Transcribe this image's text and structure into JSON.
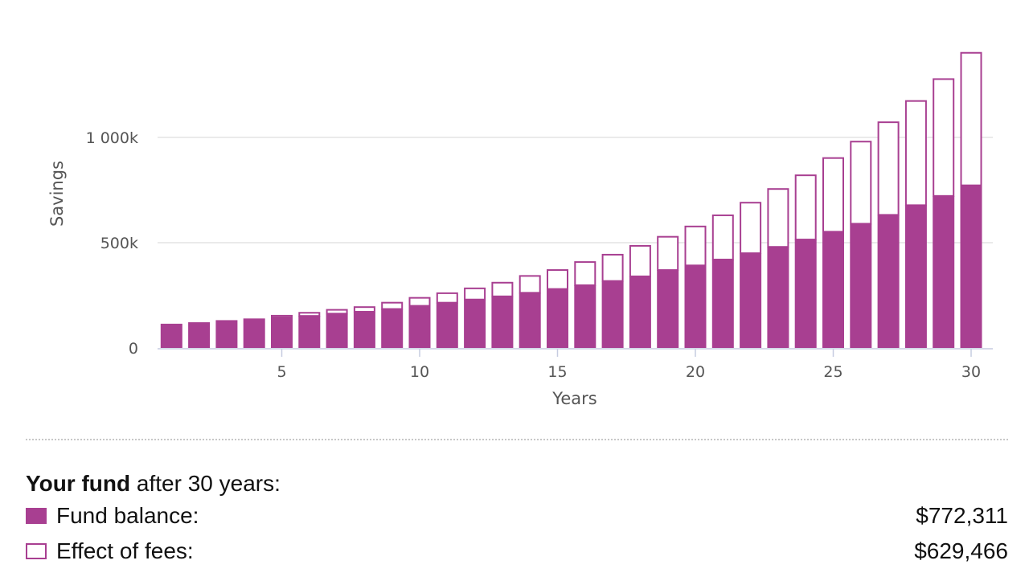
{
  "chart_data": {
    "type": "bar",
    "stacked": true,
    "xlabel": "Years",
    "ylabel": "Savings",
    "x": [
      1,
      2,
      3,
      4,
      5,
      6,
      7,
      8,
      9,
      10,
      11,
      12,
      13,
      14,
      15,
      16,
      17,
      18,
      19,
      20,
      21,
      22,
      23,
      24,
      25,
      26,
      27,
      28,
      29,
      30
    ],
    "x_ticks": [
      5,
      10,
      15,
      20,
      25,
      30
    ],
    "x_tick_labels": [
      "5",
      "10",
      "15",
      "20",
      "25",
      "30"
    ],
    "y_ticks": [
      0,
      500000,
      1000000
    ],
    "y_tick_labels": [
      "0",
      "500k",
      "1 000k"
    ],
    "ylim": [
      0,
      1400000
    ],
    "grid": true,
    "series": [
      {
        "name": "Fund balance",
        "color": "#a83f91",
        "fill": "solid",
        "values": [
          115000,
          122000,
          132000,
          140000,
          145000,
          152000,
          163000,
          172000,
          185000,
          200000,
          215000,
          230000,
          245000,
          262000,
          280000,
          298000,
          318000,
          340000,
          370000,
          392000,
          420000,
          450000,
          480000,
          515000,
          552000,
          590000,
          632000,
          678000,
          722000,
          772311
        ]
      },
      {
        "name": "Effect of fees",
        "color": "#a83f91",
        "fill": "outline",
        "values": [
          0,
          0,
          0,
          0,
          8000,
          15000,
          18000,
          22000,
          30000,
          38000,
          45000,
          53000,
          65000,
          80000,
          90000,
          110000,
          125000,
          145000,
          158000,
          185000,
          210000,
          240000,
          275000,
          305000,
          350000,
          390000,
          440000,
          495000,
          555000,
          629466
        ]
      }
    ]
  },
  "summary": {
    "title_bold": "Your fund",
    "title_rest": " after 30 years:",
    "balance_label": "Fund balance:",
    "balance_value": "$772,311",
    "fees_label": "Effect of fees:",
    "fees_value": "$629,466"
  }
}
